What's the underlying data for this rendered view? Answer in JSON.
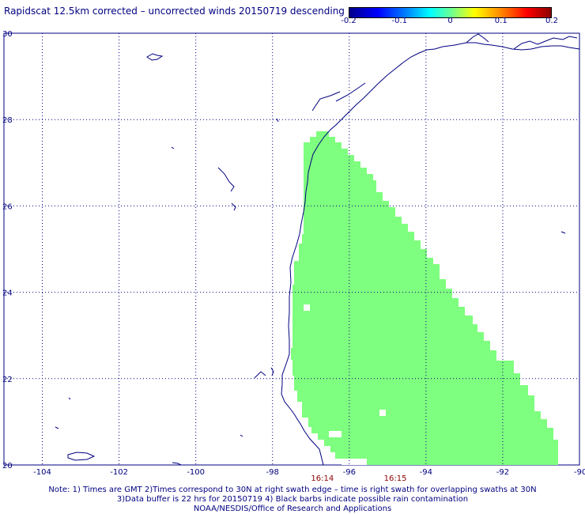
{
  "title": "Rapidscat 12.5km corrected – uncorrected winds 20150719 descending",
  "colorbar": {
    "ticks": [
      {
        "label": "-0.2",
        "value": -0.2
      },
      {
        "label": "-0.1",
        "value": -0.1
      },
      {
        "label": "0",
        "value": 0
      },
      {
        "label": "0.1",
        "value": 0.1
      },
      {
        "label": "0.2",
        "value": 0.2
      }
    ],
    "range": [
      -0.2,
      0.2
    ],
    "colors": [
      "#00008c",
      "#0000ff",
      "#00ffff",
      "#66ff99",
      "#ffff00",
      "#ff0000",
      "#8c0000"
    ]
  },
  "map": {
    "lon_range": [
      -105,
      -90
    ],
    "lat_range": [
      20,
      30
    ],
    "lon_ticks": [
      {
        "label": "-104",
        "value": -104
      },
      {
        "label": "-102",
        "value": -102
      },
      {
        "label": "-100",
        "value": -100
      },
      {
        "label": "-98",
        "value": -98
      },
      {
        "label": "-96",
        "value": -96
      },
      {
        "label": "-94",
        "value": -94
      },
      {
        "label": "-92",
        "value": -92
      },
      {
        "label": "-90",
        "value": -90
      }
    ],
    "lat_ticks": [
      {
        "label": "20",
        "value": 20
      },
      {
        "label": "22",
        "value": 22
      },
      {
        "label": "24",
        "value": 24
      },
      {
        "label": "26",
        "value": 26
      },
      {
        "label": "28",
        "value": 28
      },
      {
        "label": "30",
        "value": 30
      }
    ],
    "time_labels": [
      {
        "label": "16:14",
        "lon": -96.7
      },
      {
        "label": "16:15",
        "lon": -94.8
      }
    ],
    "swath_value": 0,
    "swath_color": "#7fff7f",
    "coast_color": "#000080",
    "grid": "dotted"
  },
  "notes": [
    "Note: 1) Times are GMT 2)Times correspond to 30N at right swath edge – time is right swath for overlapping swaths at 30N",
    "3)Data buffer is 22 hrs for 20150719 4) Black barbs indicate possible rain contamination",
    "NOAA/NESDIS/Office of Research and Applications"
  ]
}
